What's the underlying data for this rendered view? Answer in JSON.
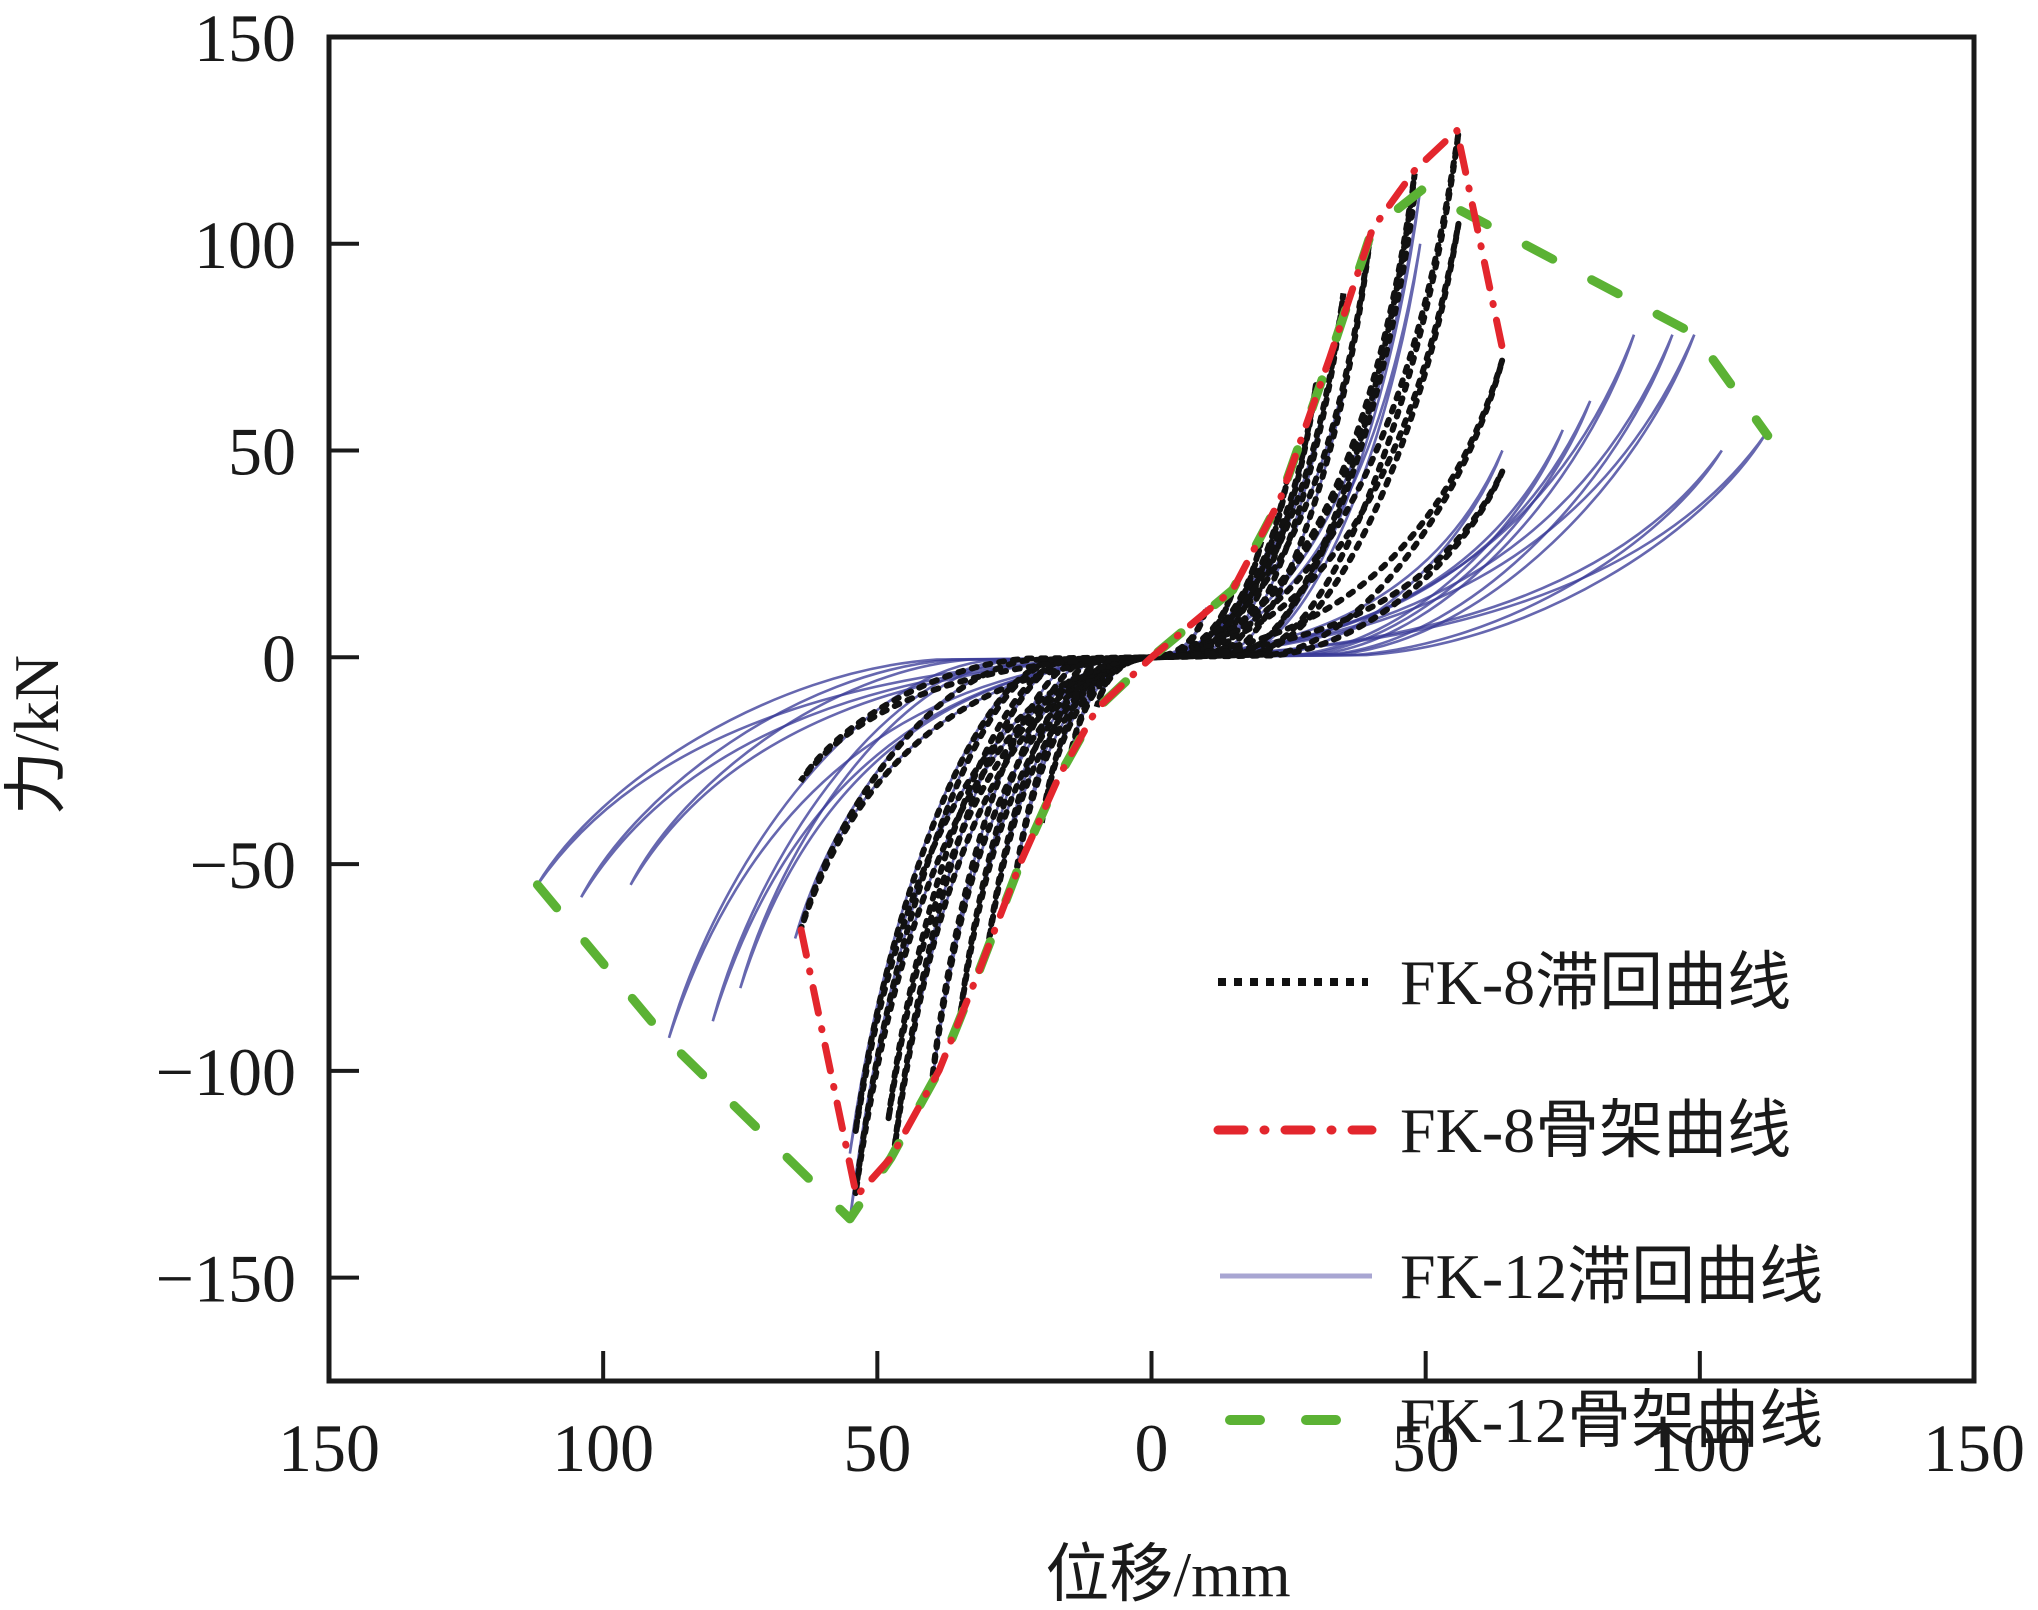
{
  "chart_data": {
    "type": "line",
    "title": "",
    "xlabel": "位移/mm",
    "ylabel": "力/kN",
    "xlim": [
      -150,
      150
    ],
    "ylim": [
      -175,
      150
    ],
    "grid": false,
    "legend_position": "bottom-right",
    "x_ticks": [
      {
        "value": -150,
        "label": "150"
      },
      {
        "value": -100,
        "label": "100"
      },
      {
        "value": -50,
        "label": "50"
      },
      {
        "value": 0,
        "label": "0"
      },
      {
        "value": 50,
        "label": "50"
      },
      {
        "value": 100,
        "label": "100"
      },
      {
        "value": 150,
        "label": "150"
      }
    ],
    "y_ticks": [
      {
        "value": 150,
        "label": "150"
      },
      {
        "value": 100,
        "label": "100"
      },
      {
        "value": 50,
        "label": "50"
      },
      {
        "value": 0,
        "label": "0"
      },
      {
        "value": -50,
        "label": "−50"
      },
      {
        "value": -100,
        "label": "−100"
      },
      {
        "value": -150,
        "label": "−150"
      }
    ],
    "series": [
      {
        "name": "FK-8滞回曲线",
        "kind": "hysteresis",
        "color": "#111111",
        "style": "dotted",
        "cycles": [
          {
            "pos": [
              10,
              12
            ],
            "neg": [
              -10,
              -12
            ]
          },
          {
            "pos": [
              15,
              17
            ],
            "neg": [
              -15,
              -25
            ]
          },
          {
            "pos": [
              20,
              28
            ],
            "neg": [
              -20,
              -40
            ]
          },
          {
            "pos": [
              25,
              45
            ],
            "neg": [
              -25,
              -55
            ]
          },
          {
            "pos": [
              30,
              66
            ],
            "neg": [
              -30,
              -72
            ]
          },
          {
            "pos": [
              35,
              88
            ],
            "neg": [
              -35,
              -88
            ]
          },
          {
            "pos": [
              40,
              103
            ],
            "neg": [
              -40,
              -102
            ]
          },
          {
            "pos": [
              48,
              117
            ],
            "neg": [
              -47,
              -120
            ]
          },
          {
            "pos": [
              48,
              112
            ],
            "neg": [
              -48,
              -112
            ]
          },
          {
            "pos": [
              56,
              127
            ],
            "neg": [
              -54,
              -130
            ]
          },
          {
            "pos": [
              56,
              105
            ],
            "neg": [
              -54,
              -115
            ]
          },
          {
            "pos": [
              64,
              72
            ],
            "neg": [
              -64,
              -66
            ]
          },
          {
            "pos": [
              64,
              45
            ],
            "neg": [
              -64,
              -30
            ]
          }
        ]
      },
      {
        "name": "FK-8骨架曲线",
        "kind": "skeleton",
        "color": "#e3262d",
        "style": "dashdot",
        "points": [
          [
            -63.9,
            -65.9
          ],
          [
            -53.8,
            -130.3
          ],
          [
            -47.5,
            -121
          ],
          [
            -38.7,
            -99.8
          ],
          [
            -31.4,
            -75.7
          ],
          [
            -24,
            -50
          ],
          [
            -16.8,
            -28.6
          ],
          [
            -10,
            -12.5
          ],
          [
            0,
            0
          ],
          [
            14.8,
            16.3
          ],
          [
            23.4,
            38
          ],
          [
            32.5,
            72.4
          ],
          [
            40.3,
            103.6
          ],
          [
            48,
            117.8
          ],
          [
            55.7,
            127.4
          ],
          [
            64.4,
            72.1
          ]
        ]
      },
      {
        "name": "FK-12滞回曲线",
        "kind": "hysteresis",
        "color": "#3b3c98",
        "style": "solid",
        "cycles": [
          {
            "pos": [
              10,
              12
            ],
            "neg": [
              -10,
              -12
            ]
          },
          {
            "pos": [
              15,
              16
            ],
            "neg": [
              -15,
              -25
            ]
          },
          {
            "pos": [
              20,
              28
            ],
            "neg": [
              -20,
              -40
            ]
          },
          {
            "pos": [
              25,
              45
            ],
            "neg": [
              -25,
              -55
            ]
          },
          {
            "pos": [
              30,
              65
            ],
            "neg": [
              -30,
              -72
            ]
          },
          {
            "pos": [
              35,
              88
            ],
            "neg": [
              -35,
              -88
            ]
          },
          {
            "pos": [
              40,
              103
            ],
            "neg": [
              -40,
              -103
            ]
          },
          {
            "pos": [
              49,
              113
            ],
            "neg": [
              -47,
              -121
            ]
          },
          {
            "pos": [
              49,
              100
            ],
            "neg": [
              -55,
              -136
            ]
          },
          {
            "pos": [
              64,
              50
            ],
            "neg": [
              -55,
              -120
            ]
          },
          {
            "pos": [
              75,
              55
            ],
            "neg": [
              -65,
              -68
            ]
          },
          {
            "pos": [
              80,
              62
            ],
            "neg": [
              -75,
              -80
            ]
          },
          {
            "pos": [
              88,
              78
            ],
            "neg": [
              -80,
              -88
            ]
          },
          {
            "pos": [
              95,
              78
            ],
            "neg": [
              -88,
              -92
            ]
          },
          {
            "pos": [
              99,
              78
            ],
            "neg": [
              -95,
              -55
            ]
          },
          {
            "pos": [
              104,
              50
            ],
            "neg": [
              -104,
              -58
            ]
          },
          {
            "pos": [
              112,
              54
            ],
            "neg": [
              -112,
              -55
            ]
          }
        ]
      },
      {
        "name": "FK-12骨架曲线",
        "kind": "skeleton",
        "color": "#5bb234",
        "style": "dashed",
        "points": [
          [
            -112,
            -55
          ],
          [
            -88.5,
            -92.3
          ],
          [
            -55,
            -135.8
          ],
          [
            -47.5,
            -121
          ],
          [
            -38.7,
            -99.8
          ],
          [
            -31.4,
            -75.7
          ],
          [
            -24,
            -50
          ],
          [
            -16.8,
            -28.6
          ],
          [
            -10,
            -12.5
          ],
          [
            0,
            0
          ],
          [
            14.8,
            16.3
          ],
          [
            23.4,
            38
          ],
          [
            32.5,
            72.4
          ],
          [
            40.3,
            103.6
          ],
          [
            49.3,
            113
          ],
          [
            99.1,
            78.1
          ],
          [
            112.4,
            53.6
          ]
        ]
      }
    ]
  }
}
